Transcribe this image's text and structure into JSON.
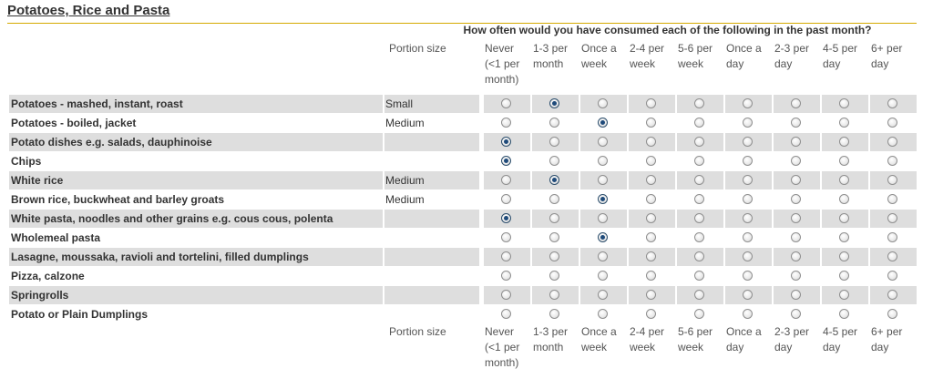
{
  "section_title": "Potatoes, Rice and Pasta",
  "question": "How often would you have consumed each of the following in the past month?",
  "portion_header": "Portion size",
  "frequency_options": [
    [
      "Never",
      "(<1 per",
      "month)"
    ],
    [
      "1-3 per",
      "month"
    ],
    [
      "Once a",
      "week"
    ],
    [
      "2-4 per",
      "week"
    ],
    [
      "5-6 per",
      "week"
    ],
    [
      "Once a",
      "day"
    ],
    [
      "2-3 per",
      "day"
    ],
    [
      "4-5 per",
      "day"
    ],
    [
      "6+ per",
      "day"
    ]
  ],
  "rows": [
    {
      "food": "Potatoes - mashed, instant, roast",
      "portion": "Small",
      "selected": 1
    },
    {
      "food": "Potatoes - boiled, jacket",
      "portion": "Medium",
      "selected": 2
    },
    {
      "food": "Potato dishes e.g. salads, dauphinoise",
      "portion": "",
      "selected": 0
    },
    {
      "food": "Chips",
      "portion": "",
      "selected": 0
    },
    {
      "food": "White rice",
      "portion": "Medium",
      "selected": 1
    },
    {
      "food": "Brown rice, buckwheat and barley groats",
      "portion": "Medium",
      "selected": 2
    },
    {
      "food": "White pasta, noodles and other grains e.g. cous cous, polenta",
      "portion": "",
      "selected": 0
    },
    {
      "food": "Wholemeal pasta",
      "portion": "",
      "selected": 2
    },
    {
      "food": "Lasagne, moussaka, ravioli and tortelini, filled dumplings",
      "portion": "",
      "selected": null
    },
    {
      "food": "Pizza, calzone",
      "portion": "",
      "selected": null
    },
    {
      "food": "Springrolls",
      "portion": "",
      "selected": null
    },
    {
      "food": "Potato or Plain Dumplings",
      "portion": "",
      "selected": null
    }
  ]
}
